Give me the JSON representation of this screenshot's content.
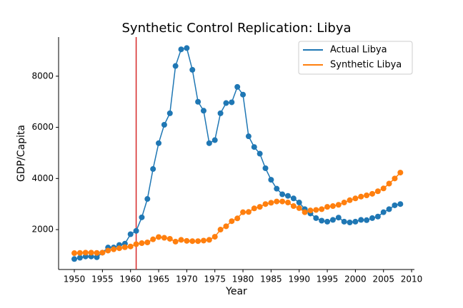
{
  "chart_data": {
    "type": "line",
    "title": "Synthetic Control Replication: Libya",
    "xlabel": "Year",
    "ylabel": "GDP/Capita",
    "x": [
      1950,
      1951,
      1952,
      1953,
      1954,
      1955,
      1956,
      1957,
      1958,
      1959,
      1960,
      1961,
      1962,
      1963,
      1964,
      1965,
      1966,
      1967,
      1968,
      1969,
      1970,
      1971,
      1972,
      1973,
      1974,
      1975,
      1976,
      1977,
      1978,
      1979,
      1980,
      1981,
      1982,
      1983,
      1984,
      1985,
      1986,
      1987,
      1988,
      1989,
      1990,
      1991,
      1992,
      1993,
      1994,
      1995,
      1996,
      1997,
      1998,
      1999,
      2000,
      2001,
      2002,
      2003,
      2004,
      2005,
      2006,
      2007,
      2008
    ],
    "series": [
      {
        "name": "Actual Libya",
        "color": "#1f77b4",
        "values": [
          850,
          900,
          950,
          950,
          920,
          1100,
          1300,
          1300,
          1400,
          1450,
          1820,
          1950,
          2480,
          3200,
          4370,
          5380,
          6100,
          6550,
          8400,
          9050,
          9100,
          8250,
          7000,
          6650,
          5380,
          5500,
          6550,
          6950,
          6980,
          7580,
          7280,
          5650,
          5230,
          4970,
          4400,
          3950,
          3600,
          3380,
          3320,
          3220,
          3060,
          2800,
          2630,
          2450,
          2350,
          2310,
          2380,
          2470,
          2310,
          2280,
          2310,
          2380,
          2370,
          2450,
          2510,
          2680,
          2800,
          2950,
          3000
        ]
      },
      {
        "name": "Synthetic Libya",
        "color": "#ff7f0e",
        "values": [
          1080,
          1090,
          1100,
          1100,
          1090,
          1100,
          1180,
          1230,
          1270,
          1310,
          1340,
          1430,
          1470,
          1500,
          1620,
          1710,
          1680,
          1640,
          1530,
          1600,
          1560,
          1550,
          1550,
          1570,
          1600,
          1720,
          2000,
          2130,
          2330,
          2440,
          2680,
          2690,
          2830,
          2890,
          3000,
          3050,
          3100,
          3100,
          3060,
          2920,
          2840,
          2680,
          2750,
          2770,
          2800,
          2890,
          2920,
          2970,
          3060,
          3150,
          3220,
          3290,
          3340,
          3400,
          3500,
          3610,
          3800,
          4000,
          4230
        ]
      }
    ],
    "vline": {
      "x": 1961,
      "color": "#d62728"
    },
    "xlim": [
      1947.2,
      2010.5
    ],
    "xticks": [
      1950,
      1955,
      1960,
      1965,
      1970,
      1975,
      1980,
      1985,
      1990,
      1995,
      2000,
      2005,
      2010
    ],
    "ylim": [
      440,
      9530
    ],
    "yticks": [
      2000,
      4000,
      6000,
      8000
    ],
    "legend": "upper right"
  }
}
